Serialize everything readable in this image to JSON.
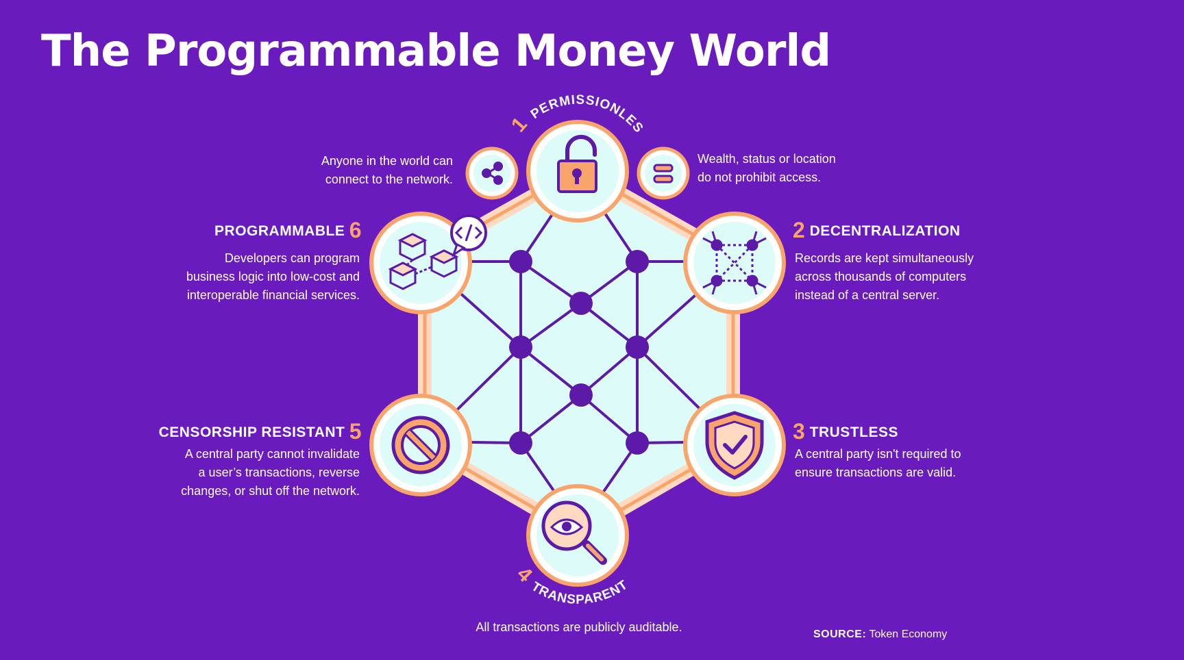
{
  "title": "The Programmable Money World",
  "colors": {
    "background": "#6a1bbd",
    "accent_orange": "#f9a46b",
    "node_purple": "#5d1aa8",
    "fill_cyan": "#dcfbf9"
  },
  "features": [
    {
      "number": "1",
      "name": "Permissionless",
      "icon": "unlocked-padlock-icon",
      "desc_left": [
        "Anyone in the world can",
        "connect to the network."
      ],
      "desc_right": [
        "Wealth, status or location",
        "do not prohibit access."
      ],
      "side_icons": [
        "share-icon",
        "equal-icon"
      ]
    },
    {
      "number": "2",
      "name": "Decentralization",
      "icon": "network-nodes-icon",
      "desc": [
        "Records are kept simultaneously",
        "across thousands of computers",
        "instead of a central server."
      ]
    },
    {
      "number": "3",
      "name": "Trustless",
      "icon": "shield-check-icon",
      "desc": [
        "A central party isn't required to",
        "ensure transactions are valid."
      ]
    },
    {
      "number": "4",
      "name": "Transparent",
      "icon": "eye-magnifier-icon",
      "desc": [
        "All transactions are publicly auditable."
      ]
    },
    {
      "number": "5",
      "name": "Censorship Resistant",
      "icon": "prohibited-icon",
      "desc": [
        "A central party cannot invalidate",
        "a user’s transactions, reverse",
        "changes, or shut off the network."
      ]
    },
    {
      "number": "6",
      "name": "Programmable",
      "icon": "cubes-code-icon",
      "desc": [
        "Developers can program",
        "business logic into low-cost and",
        "interoperable financial services."
      ]
    }
  ],
  "source": {
    "label": "Source:",
    "value": "Token Economy"
  }
}
